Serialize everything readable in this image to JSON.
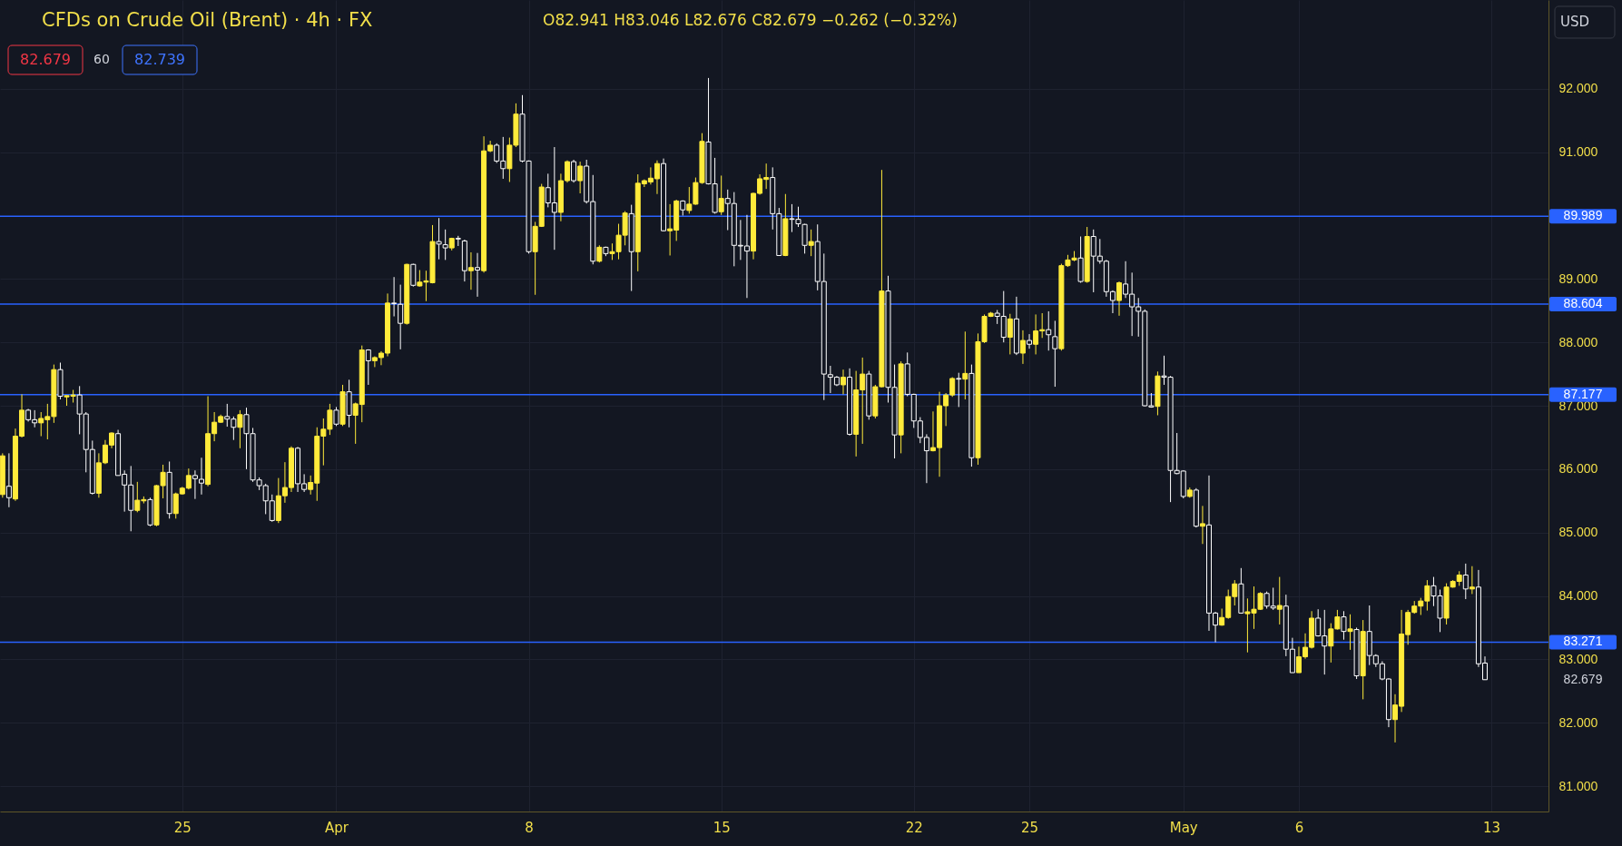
{
  "chart_data": {
    "type": "candlestick",
    "title": "CFDs on Crude Oil (Brent) · 4h · FX",
    "annotations": [
      "O82.941 H83.046 L82.676 C82.679 −0.262 (−0.32%)",
      "82.679",
      "60",
      "82.739",
      "USD",
      "82.679"
    ],
    "categories": [
      null,
      null,
      null,
      null,
      null,
      null,
      null,
      null,
      null,
      null,
      null,
      null,
      null,
      null,
      null,
      null,
      null,
      null,
      null,
      null,
      null,
      null,
      null,
      null,
      null,
      null,
      null,
      null,
      "25",
      null,
      null,
      null,
      null,
      null,
      null,
      null,
      null,
      null,
      null,
      null,
      null,
      null,
      null,
      null,
      null,
      null,
      null,
      null,
      null,
      null,
      null,
      null,
      "Apr",
      null,
      null,
      null,
      null,
      null,
      null,
      null,
      null,
      null,
      null,
      null,
      null,
      null,
      null,
      null,
      null,
      null,
      null,
      null,
      null,
      null,
      null,
      null,
      null,
      null,
      null,
      null,
      null,
      null,
      "8",
      null,
      null,
      null,
      null,
      null,
      null,
      null,
      null,
      null,
      null,
      null,
      null,
      null,
      null,
      null,
      null,
      null,
      null,
      null,
      null,
      null,
      null,
      null,
      null,
      null,
      null,
      null,
      null,
      null,
      "15",
      null,
      null,
      null,
      null,
      null,
      null,
      null,
      null,
      null,
      null,
      null,
      null,
      null,
      null,
      null,
      null,
      null,
      null,
      null,
      null,
      null,
      null,
      null,
      null,
      null,
      null,
      null,
      null,
      null,
      "22",
      null,
      null,
      null,
      null,
      null,
      null,
      null,
      null,
      null,
      null,
      null,
      null,
      null,
      null,
      null,
      null,
      null,
      "25",
      null,
      null,
      null,
      null,
      null,
      null,
      null,
      null,
      null,
      null,
      null,
      null,
      null,
      null,
      null,
      null,
      null,
      null,
      null,
      null,
      null,
      null,
      null,
      "May",
      null,
      null,
      null,
      null,
      null,
      null,
      null,
      null,
      null,
      null,
      null,
      null,
      null,
      null,
      null,
      null,
      null,
      "6",
      null,
      null,
      null,
      null,
      null,
      null,
      null,
      null,
      null,
      null,
      null,
      null,
      null,
      null,
      null,
      null,
      null,
      null,
      null,
      null,
      null,
      null,
      null,
      null,
      null,
      null,
      null,
      null,
      null,
      "13"
    ],
    "ohlc": [
      [
        85.6,
        86.25,
        85.55,
        86.21
      ],
      [
        85.73,
        86.25,
        85.4,
        85.55
      ],
      [
        85.53,
        86.64,
        85.5,
        86.52
      ],
      [
        86.52,
        87.18,
        86.5,
        86.93
      ],
      [
        86.93,
        86.95,
        86.75,
        86.78
      ],
      [
        86.78,
        86.93,
        86.66,
        86.73
      ],
      [
        86.73,
        86.9,
        86.52,
        86.8
      ],
      [
        86.78,
        87.03,
        86.47,
        86.83
      ],
      [
        86.83,
        87.65,
        86.73,
        87.57
      ],
      [
        87.57,
        87.68,
        87.1,
        87.15
      ],
      [
        87.14,
        87.16,
        87.0,
        87.16
      ],
      [
        87.15,
        87.25,
        87.05,
        87.17
      ],
      [
        87.17,
        87.31,
        86.55,
        86.87
      ],
      [
        86.87,
        86.9,
        85.95,
        86.31
      ],
      [
        86.31,
        86.45,
        85.6,
        85.62
      ],
      [
        85.62,
        86.25,
        85.55,
        86.1
      ],
      [
        86.1,
        86.46,
        86.08,
        86.38
      ],
      [
        86.38,
        86.58,
        86.33,
        86.57
      ],
      [
        86.56,
        86.62,
        85.9,
        85.9
      ],
      [
        85.92,
        85.98,
        85.33,
        85.75
      ],
      [
        85.75,
        86.05,
        85.02,
        85.35
      ],
      [
        85.35,
        85.8,
        85.32,
        85.51
      ],
      [
        85.5,
        85.57,
        85.46,
        85.52
      ],
      [
        85.52,
        85.55,
        85.1,
        85.12
      ],
      [
        85.12,
        85.75,
        85.1,
        85.74
      ],
      [
        85.74,
        86.07,
        85.54,
        85.95
      ],
      [
        85.95,
        86.12,
        85.22,
        85.3
      ],
      [
        85.3,
        85.63,
        85.22,
        85.61
      ],
      [
        85.61,
        85.72,
        85.6,
        85.7
      ],
      [
        85.7,
        86.01,
        85.68,
        85.9
      ],
      [
        85.9,
        85.98,
        85.53,
        85.85
      ],
      [
        85.84,
        86.18,
        85.6,
        85.78
      ],
      [
        85.76,
        87.15,
        85.73,
        86.56
      ],
      [
        86.56,
        86.9,
        86.44,
        86.74
      ],
      [
        86.74,
        86.86,
        86.73,
        86.83
      ],
      [
        86.83,
        87.03,
        86.67,
        86.79
      ],
      [
        86.79,
        86.83,
        86.46,
        86.66
      ],
      [
        86.66,
        86.93,
        86.33,
        86.86
      ],
      [
        86.86,
        86.97,
        86.0,
        86.56
      ],
      [
        86.56,
        86.65,
        85.8,
        85.83
      ],
      [
        85.83,
        85.87,
        85.67,
        85.74
      ],
      [
        85.74,
        85.77,
        85.29,
        85.5
      ],
      [
        85.5,
        85.6,
        85.17,
        85.19
      ],
      [
        85.19,
        85.86,
        85.15,
        85.58
      ],
      [
        85.58,
        86.11,
        85.47,
        85.71
      ],
      [
        85.71,
        86.36,
        85.64,
        86.33
      ],
      [
        86.33,
        86.35,
        85.64,
        85.77
      ],
      [
        85.77,
        85.92,
        85.64,
        85.68
      ],
      [
        85.68,
        85.9,
        85.6,
        85.79
      ],
      [
        85.78,
        86.66,
        85.5,
        86.52
      ],
      [
        86.52,
        86.8,
        86.06,
        86.63
      ],
      [
        86.63,
        87.03,
        86.54,
        86.93
      ],
      [
        86.93,
        86.98,
        86.68,
        86.71
      ],
      [
        86.71,
        87.33,
        86.68,
        87.22
      ],
      [
        87.22,
        87.41,
        86.66,
        86.85
      ],
      [
        86.85,
        87.05,
        86.4,
        87.03
      ],
      [
        87.02,
        87.95,
        86.74,
        87.88
      ],
      [
        87.88,
        87.89,
        87.33,
        87.71
      ],
      [
        87.71,
        87.78,
        87.61,
        87.76
      ],
      [
        87.76,
        87.86,
        87.64,
        87.83
      ],
      [
        87.83,
        88.77,
        87.78,
        88.62
      ],
      [
        88.62,
        89.03,
        88.41,
        88.61
      ],
      [
        88.6,
        88.91,
        87.89,
        88.3
      ],
      [
        88.3,
        89.24,
        88.28,
        89.23
      ],
      [
        89.23,
        89.24,
        88.88,
        88.9
      ],
      [
        88.89,
        89.14,
        88.88,
        88.95
      ],
      [
        88.95,
        89.13,
        88.65,
        88.97
      ],
      [
        88.94,
        89.85,
        88.93,
        89.59
      ],
      [
        89.59,
        89.96,
        89.31,
        89.55
      ],
      [
        89.54,
        89.78,
        89.3,
        89.49
      ],
      [
        89.49,
        89.65,
        89.45,
        89.64
      ],
      [
        89.64,
        89.68,
        89.52,
        89.63
      ],
      [
        89.6,
        89.62,
        88.96,
        89.13
      ],
      [
        89.13,
        89.42,
        88.83,
        89.18
      ],
      [
        89.18,
        89.41,
        88.72,
        89.14
      ],
      [
        89.13,
        91.25,
        89.1,
        91.02
      ],
      [
        91.02,
        91.18,
        91.0,
        91.11
      ],
      [
        91.11,
        91.14,
        90.83,
        90.86
      ],
      [
        90.86,
        91.24,
        90.58,
        90.74
      ],
      [
        90.74,
        91.23,
        90.53,
        91.11
      ],
      [
        91.11,
        91.77,
        91.08,
        91.6
      ],
      [
        91.6,
        91.9,
        90.84,
        90.86
      ],
      [
        90.86,
        90.87,
        89.4,
        89.43
      ],
      [
        89.43,
        89.9,
        88.75,
        89.83
      ],
      [
        89.83,
        90.5,
        89.82,
        90.45
      ],
      [
        90.44,
        90.66,
        90.13,
        90.2
      ],
      [
        90.2,
        91.08,
        89.46,
        90.05
      ],
      [
        90.05,
        90.66,
        89.91,
        90.55
      ],
      [
        90.55,
        90.87,
        90.52,
        90.85
      ],
      [
        90.85,
        90.88,
        90.52,
        90.55
      ],
      [
        90.55,
        90.85,
        90.35,
        90.78
      ],
      [
        90.78,
        90.88,
        90.19,
        90.22
      ],
      [
        90.22,
        90.64,
        89.23,
        89.28
      ],
      [
        89.28,
        89.53,
        89.26,
        89.5
      ],
      [
        89.5,
        89.51,
        89.36,
        89.4
      ],
      [
        89.4,
        89.56,
        89.3,
        89.43
      ],
      [
        89.43,
        89.87,
        89.31,
        89.69
      ],
      [
        89.69,
        90.07,
        89.53,
        90.04
      ],
      [
        90.03,
        90.17,
        88.81,
        89.43
      ],
      [
        89.43,
        90.65,
        89.12,
        90.51
      ],
      [
        90.5,
        90.57,
        90.45,
        90.55
      ],
      [
        90.53,
        90.76,
        90.49,
        90.59
      ],
      [
        90.58,
        90.87,
        90.34,
        90.82
      ],
      [
        90.82,
        90.9,
        89.75,
        89.76
      ],
      [
        89.76,
        90.18,
        89.37,
        89.79
      ],
      [
        89.77,
        90.25,
        89.6,
        90.23
      ],
      [
        90.23,
        90.24,
        90.0,
        90.09
      ],
      [
        90.08,
        90.45,
        90.03,
        90.18
      ],
      [
        90.18,
        90.6,
        90.17,
        90.52
      ],
      [
        90.52,
        91.3,
        90.5,
        91.17
      ],
      [
        91.16,
        92.17,
        90.49,
        90.5
      ],
      [
        90.5,
        90.91,
        90.03,
        90.05
      ],
      [
        90.06,
        90.63,
        90.01,
        90.27
      ],
      [
        90.27,
        90.41,
        89.77,
        90.19
      ],
      [
        90.19,
        90.37,
        89.2,
        89.53
      ],
      [
        89.53,
        89.93,
        89.3,
        89.52
      ],
      [
        89.52,
        90.01,
        88.7,
        89.44
      ],
      [
        89.44,
        90.36,
        89.31,
        90.35
      ],
      [
        90.35,
        90.65,
        90.33,
        90.58
      ],
      [
        90.57,
        90.82,
        90.42,
        90.6
      ],
      [
        90.6,
        90.76,
        89.78,
        90.03
      ],
      [
        90.03,
        90.12,
        89.37,
        89.37
      ],
      [
        89.37,
        90.34,
        89.36,
        89.95
      ],
      [
        89.95,
        90.18,
        89.74,
        89.94
      ],
      [
        89.94,
        90.14,
        89.82,
        89.87
      ],
      [
        89.86,
        89.87,
        89.4,
        89.53
      ],
      [
        89.53,
        89.78,
        89.36,
        89.59
      ],
      [
        89.59,
        89.86,
        88.82,
        88.96
      ],
      [
        88.96,
        89.4,
        87.09,
        87.5
      ],
      [
        87.49,
        87.63,
        87.2,
        87.45
      ],
      [
        87.45,
        87.47,
        87.31,
        87.33
      ],
      [
        87.33,
        87.57,
        87.18,
        87.45
      ],
      [
        87.45,
        87.59,
        86.53,
        86.55
      ],
      [
        86.55,
        87.55,
        86.2,
        87.25
      ],
      [
        87.25,
        87.76,
        86.4,
        87.5
      ],
      [
        87.5,
        87.55,
        86.78,
        86.84
      ],
      [
        86.84,
        87.33,
        86.8,
        87.3
      ],
      [
        87.3,
        90.72,
        87.29,
        88.81
      ],
      [
        88.81,
        89.05,
        87.05,
        87.29
      ],
      [
        87.29,
        87.65,
        86.17,
        86.54
      ],
      [
        86.54,
        87.7,
        86.25,
        87.66
      ],
      [
        87.66,
        87.84,
        87.15,
        87.18
      ],
      [
        87.18,
        87.19,
        86.65,
        86.76
      ],
      [
        86.76,
        86.82,
        86.41,
        86.5
      ],
      [
        86.5,
        86.55,
        85.78,
        86.29
      ],
      [
        86.29,
        86.91,
        86.28,
        86.34
      ],
      [
        86.34,
        87.22,
        85.88,
        87.0
      ],
      [
        87.0,
        87.2,
        86.68,
        87.17
      ],
      [
        87.17,
        87.45,
        87.14,
        87.43
      ],
      [
        87.43,
        87.52,
        86.98,
        87.42
      ],
      [
        87.42,
        88.17,
        87.1,
        87.51
      ],
      [
        87.51,
        87.65,
        86.04,
        86.18
      ],
      [
        86.18,
        88.14,
        86.07,
        88.01
      ],
      [
        88.01,
        88.44,
        87.99,
        88.41
      ],
      [
        88.41,
        88.48,
        88.4,
        88.46
      ],
      [
        88.46,
        88.51,
        88.29,
        88.41
      ],
      [
        88.41,
        88.81,
        88.0,
        88.08
      ],
      [
        88.08,
        88.45,
        87.81,
        88.37
      ],
      [
        88.37,
        88.72,
        87.8,
        87.83
      ],
      [
        87.83,
        88.19,
        87.66,
        88.03
      ],
      [
        88.03,
        88.13,
        87.9,
        87.97
      ],
      [
        87.97,
        88.44,
        87.81,
        88.18
      ],
      [
        88.18,
        88.46,
        88.07,
        88.2
      ],
      [
        88.2,
        88.49,
        87.87,
        88.12
      ],
      [
        88.09,
        88.34,
        87.3,
        87.9
      ],
      [
        87.9,
        89.24,
        87.87,
        89.21
      ],
      [
        89.21,
        89.38,
        89.19,
        89.3
      ],
      [
        89.3,
        89.44,
        89.28,
        89.33
      ],
      [
        89.33,
        89.67,
        88.94,
        88.96
      ],
      [
        88.96,
        89.82,
        88.94,
        89.67
      ],
      [
        89.67,
        89.78,
        88.79,
        89.36
      ],
      [
        89.36,
        89.63,
        89.24,
        89.28
      ],
      [
        89.28,
        89.3,
        88.72,
        88.8
      ],
      [
        88.8,
        88.82,
        88.46,
        88.66
      ],
      [
        88.66,
        88.96,
        88.42,
        88.94
      ],
      [
        88.92,
        89.28,
        88.7,
        88.76
      ],
      [
        88.76,
        89.1,
        88.1,
        88.56
      ],
      [
        88.56,
        88.7,
        88.09,
        88.49
      ],
      [
        88.49,
        88.52,
        86.99,
        87.0
      ],
      [
        87.0,
        87.2,
        86.97,
        86.98
      ],
      [
        86.99,
        87.54,
        86.85,
        87.47
      ],
      [
        87.47,
        87.79,
        87.33,
        87.45
      ],
      [
        87.45,
        87.47,
        85.48,
        85.98
      ],
      [
        85.98,
        86.57,
        85.92,
        85.93
      ],
      [
        85.97,
        85.98,
        85.54,
        85.57
      ],
      [
        85.57,
        85.71,
        85.55,
        85.67
      ],
      [
        85.67,
        85.7,
        85.08,
        85.1
      ],
      [
        85.1,
        85.42,
        84.82,
        85.14
      ],
      [
        85.12,
        85.9,
        83.45,
        83.73
      ],
      [
        83.73,
        83.75,
        83.27,
        83.54
      ],
      [
        83.54,
        83.8,
        83.53,
        83.66
      ],
      [
        83.66,
        84.1,
        83.64,
        83.99
      ],
      [
        83.99,
        84.25,
        83.85,
        84.19
      ],
      [
        84.19,
        84.44,
        83.72,
        83.73
      ],
      [
        83.72,
        83.96,
        83.11,
        83.75
      ],
      [
        83.73,
        84.15,
        83.48,
        83.79
      ],
      [
        83.79,
        84.06,
        83.78,
        84.04
      ],
      [
        84.04,
        84.07,
        83.8,
        83.84
      ],
      [
        83.84,
        84.13,
        83.78,
        83.81
      ],
      [
        83.79,
        84.3,
        83.55,
        83.85
      ],
      [
        83.84,
        84.02,
        83.05,
        83.16
      ],
      [
        83.16,
        83.34,
        82.79,
        82.79
      ],
      [
        82.79,
        83.2,
        82.79,
        83.04
      ],
      [
        83.04,
        83.41,
        83.01,
        83.19
      ],
      [
        83.19,
        83.76,
        83.17,
        83.65
      ],
      [
        83.65,
        83.79,
        83.36,
        83.37
      ],
      [
        83.37,
        83.78,
        82.76,
        83.21
      ],
      [
        83.21,
        83.57,
        82.95,
        83.48
      ],
      [
        83.48,
        83.78,
        83.47,
        83.67
      ],
      [
        83.67,
        83.76,
        83.31,
        83.44
      ],
      [
        83.44,
        83.71,
        83.15,
        83.48
      ],
      [
        83.47,
        83.5,
        82.69,
        82.74
      ],
      [
        82.74,
        83.62,
        82.37,
        83.44
      ],
      [
        83.44,
        83.85,
        82.91,
        83.06
      ],
      [
        83.06,
        83.08,
        82.88,
        82.93
      ],
      [
        82.93,
        82.97,
        82.67,
        82.69
      ],
      [
        82.69,
        82.7,
        81.93,
        82.05
      ],
      [
        82.05,
        82.45,
        81.69,
        82.28
      ],
      [
        82.26,
        83.78,
        82.17,
        83.4
      ],
      [
        83.39,
        83.78,
        83.23,
        83.74
      ],
      [
        83.74,
        83.92,
        83.72,
        83.84
      ],
      [
        83.84,
        83.97,
        83.7,
        83.92
      ],
      [
        83.92,
        84.25,
        83.77,
        84.16
      ],
      [
        84.16,
        84.3,
        83.84,
        84.0
      ],
      [
        84.0,
        84.1,
        83.43,
        83.65
      ],
      [
        83.65,
        84.2,
        83.55,
        84.14
      ],
      [
        84.14,
        84.25,
        84.13,
        84.23
      ],
      [
        84.23,
        84.39,
        84.16,
        84.33
      ],
      [
        84.33,
        84.51,
        83.95,
        84.11
      ],
      [
        84.11,
        84.47,
        84.03,
        84.14
      ],
      [
        84.14,
        84.41,
        82.88,
        82.93
      ],
      [
        82.941,
        83.046,
        82.676,
        82.679
      ],
      null
    ],
    "colors": [
      "#ffeb3b",
      "#ffffff",
      "#ffeb3b",
      "#ffeb3b",
      "#ffffff",
      "#ffffff",
      "#ffeb3b",
      "#ffeb3b",
      "#ffeb3b",
      "#ffffff",
      "#ffeb3b",
      "#ffeb3b",
      "#ffffff",
      "#ffffff",
      "#ffffff",
      "#ffeb3b",
      "#ffeb3b",
      "#ffeb3b",
      "#ffffff",
      "#ffffff",
      "#ffffff",
      "#ffeb3b",
      "#ffeb3b",
      "#ffffff",
      "#ffeb3b",
      "#ffeb3b",
      "#ffffff",
      "#ffeb3b",
      "#ffeb3b",
      "#ffeb3b",
      "#ffffff",
      "#ffffff",
      "#ffeb3b",
      "#ffeb3b",
      "#ffeb3b",
      "#ffffff",
      "#ffffff",
      "#ffeb3b",
      "#ffffff",
      "#ffffff",
      "#ffffff",
      "#ffffff",
      "#ffffff",
      "#ffeb3b",
      "#ffeb3b",
      "#ffeb3b",
      "#ffffff",
      "#ffffff",
      "#ffeb3b",
      "#ffeb3b",
      "#ffeb3b",
      "#ffeb3b",
      "#ffffff",
      "#ffeb3b",
      "#ffffff",
      "#ffeb3b",
      "#ffeb3b",
      "#ffffff",
      "#ffeb3b",
      "#ffeb3b",
      "#ffeb3b",
      "#ffffff",
      "#ffffff",
      "#ffeb3b",
      "#ffffff",
      "#ffeb3b",
      "#ffeb3b",
      "#ffeb3b",
      "#ffffff",
      "#ffffff",
      "#ffeb3b",
      "#ffffff",
      "#ffffff",
      "#ffeb3b",
      "#ffffff",
      "#ffeb3b",
      "#ffeb3b",
      "#ffffff",
      "#ffffff",
      "#ffeb3b",
      "#ffeb3b",
      "#ffffff",
      "#ffffff",
      "#ffeb3b",
      "#ffeb3b",
      "#ffffff",
      "#ffffff",
      "#ffeb3b",
      "#ffeb3b",
      "#ffffff",
      "#ffeb3b",
      "#ffffff",
      "#ffffff",
      "#ffeb3b",
      "#ffffff",
      "#ffeb3b",
      "#ffeb3b",
      "#ffeb3b",
      "#ffffff",
      "#ffeb3b",
      "#ffeb3b",
      "#ffeb3b",
      "#ffeb3b",
      "#ffffff",
      "#ffeb3b",
      "#ffeb3b",
      "#ffffff",
      "#ffeb3b",
      "#ffeb3b",
      "#ffeb3b",
      "#ffffff",
      "#ffffff",
      "#ffeb3b",
      "#ffffff",
      "#ffffff",
      "#ffffff",
      "#ffffff",
      "#ffeb3b",
      "#ffeb3b",
      "#ffeb3b",
      "#ffffff",
      "#ffffff",
      "#ffeb3b",
      "#ffffff",
      "#ffffff",
      "#ffffff",
      "#ffeb3b",
      "#ffffff",
      "#ffffff",
      "#ffffff",
      "#ffffff",
      "#ffeb3b",
      "#ffffff",
      "#ffeb3b",
      "#ffeb3b",
      "#ffffff",
      "#ffeb3b",
      "#ffeb3b",
      "#ffffff",
      "#ffffff",
      "#ffeb3b",
      "#ffffff",
      "#ffffff",
      "#ffffff",
      "#ffffff",
      "#ffeb3b",
      "#ffeb3b",
      "#ffeb3b",
      "#ffeb3b",
      "#ffffff",
      "#ffeb3b",
      "#ffffff",
      "#ffeb3b",
      "#ffeb3b",
      "#ffeb3b",
      "#ffffff",
      "#ffffff",
      "#ffeb3b",
      "#ffffff",
      "#ffeb3b",
      "#ffffff",
      "#ffeb3b",
      "#ffeb3b",
      "#ffffff",
      "#ffffff",
      "#ffeb3b",
      "#ffeb3b",
      "#ffeb3b",
      "#ffffff",
      "#ffeb3b",
      "#ffffff",
      "#ffffff",
      "#ffffff",
      "#ffffff",
      "#ffeb3b",
      "#ffffff",
      "#ffffff",
      "#ffffff",
      "#ffffff",
      "#ffffff",
      "#ffeb3b",
      "#ffffff",
      "#ffffff",
      "#ffffff",
      "#ffffff",
      "#ffeb3b",
      "#ffffff",
      "#ffeb3b",
      "#ffffff",
      "#ffffff",
      "#ffeb3b",
      "#ffeb3b",
      "#ffeb3b",
      "#ffffff",
      "#ffeb3b",
      "#ffeb3b",
      "#ffeb3b",
      "#ffffff",
      "#ffffff",
      "#ffeb3b",
      "#ffffff",
      "#ffffff",
      "#ffeb3b",
      "#ffeb3b",
      "#ffeb3b",
      "#ffffff",
      "#ffffff",
      "#ffeb3b",
      "#ffeb3b",
      "#ffffff",
      "#ffeb3b",
      "#ffffff",
      "#ffeb3b",
      "#ffffff",
      "#ffffff",
      "#ffffff",
      "#ffffff",
      "#ffeb3b",
      "#ffeb3b",
      "#ffeb3b",
      "#ffeb3b",
      "#ffeb3b",
      "#ffeb3b",
      "#ffffff",
      "#ffffff",
      "#ffeb3b",
      "#ffeb3b",
      "#ffeb3b",
      "#ffffff",
      "#ffeb3b",
      "#ffffff",
      "#ffffff",
      null
    ],
    "ylim": [
      80.6,
      93.4
    ],
    "yticks": [
      {
        "value": 81,
        "label": "81.000"
      },
      {
        "value": 82,
        "label": "82.000"
      },
      {
        "value": 83,
        "label": "83.000"
      },
      {
        "value": 84,
        "label": "84.000"
      },
      {
        "value": 85,
        "label": "85.000"
      },
      {
        "value": 86,
        "label": "86.000"
      },
      {
        "value": 87,
        "label": "87.000"
      },
      {
        "value": 88,
        "label": "88.000"
      },
      {
        "value": 89,
        "label": "89.000"
      },
      {
        "value": 91,
        "label": "91.000"
      },
      {
        "value": 92,
        "label": "92.000"
      }
    ],
    "grid": true,
    "ref_lines": [
      {
        "axis": "y",
        "value": 89.989,
        "label": "89.989",
        "color": "#2962ff"
      },
      {
        "axis": "y",
        "value": 88.604,
        "label": "88.604",
        "color": "#2962ff"
      },
      {
        "axis": "y",
        "value": 87.177,
        "label": "87.177",
        "color": "#2962ff"
      },
      {
        "axis": "y",
        "value": 83.271,
        "label": "83.271",
        "color": "#2962ff"
      }
    ]
  }
}
